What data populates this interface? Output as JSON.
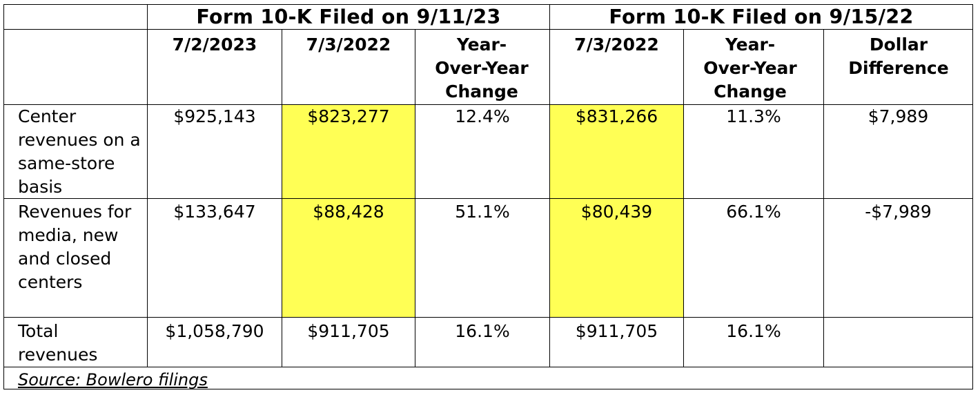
{
  "groups": {
    "g1": "Form 10-K Filed on 9/11/23",
    "g2": "Form 10-K Filed on 9/15/22"
  },
  "columns": {
    "c1": "7/2/2023",
    "c2": "7/3/2022",
    "c3": "Year-Over-Year Change",
    "c4": "7/3/2022",
    "c5": "Year-Over-Year Change",
    "c6": "Dollar Difference"
  },
  "rows": [
    {
      "label": "Center revenues on a same-store basis",
      "values": [
        "$925,143",
        "$823,277",
        "12.4%",
        "$831,266",
        "11.3%",
        "$7,989"
      ]
    },
    {
      "label": "Revenues for media, new and closed centers",
      "values": [
        "$133,647",
        "$88,428",
        "51.1%",
        "$80,439",
        "66.1%",
        "-$7,989"
      ]
    },
    {
      "label": "Total revenues",
      "values": [
        "$1,058,790",
        "$911,705",
        "16.1%",
        "$911,705",
        "16.1%",
        ""
      ]
    }
  ],
  "highlight_color": "#ffff55",
  "source": "Source: Bowlero filings"
}
